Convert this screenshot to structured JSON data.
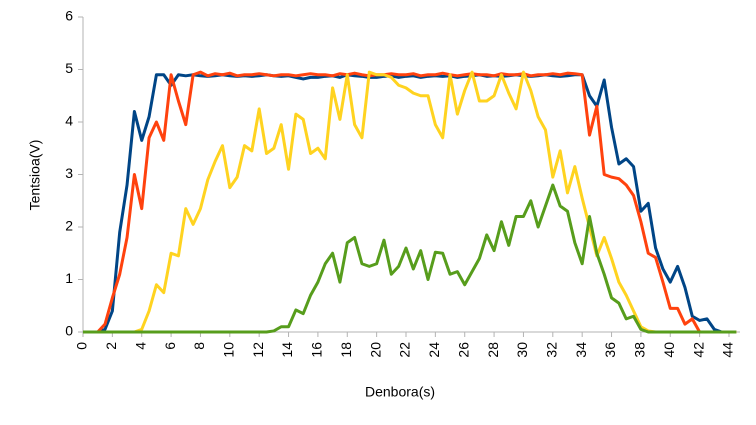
{
  "chart_data": {
    "type": "line",
    "x_label": "Denbora(s)",
    "y_label": "Tentsioa(V)",
    "x": [
      0,
      0.5,
      1,
      1.5,
      2,
      2.5,
      3,
      3.5,
      4,
      4.5,
      5,
      5.5,
      6,
      6.5,
      7,
      7.5,
      8,
      8.5,
      9,
      9.5,
      10,
      10.5,
      11,
      11.5,
      12,
      12.5,
      13,
      13.5,
      14,
      14.5,
      15,
      15.5,
      16,
      16.5,
      17,
      17.5,
      18,
      18.5,
      19,
      19.5,
      20,
      20.5,
      21,
      21.5,
      22,
      22.5,
      23,
      23.5,
      24,
      24.5,
      25,
      25.5,
      26,
      26.5,
      27,
      27.5,
      28,
      28.5,
      29,
      29.5,
      30,
      30.5,
      31,
      31.5,
      32,
      32.5,
      33,
      33.5,
      34,
      34.5,
      35,
      35.5,
      36,
      36.5,
      37,
      37.5,
      38,
      38.5,
      39,
      39.5,
      40,
      40.5,
      41,
      41.5,
      42,
      42.5,
      43,
      43.5,
      44,
      44.5
    ],
    "series": [
      {
        "color": "#004586",
        "values": [
          0,
          0,
          0,
          0.05,
          0.4,
          1.9,
          2.8,
          4.2,
          3.65,
          4.1,
          4.9,
          4.9,
          4.7,
          4.9,
          4.88,
          4.9,
          4.88,
          4.87,
          4.88,
          4.9,
          4.88,
          4.87,
          4.88,
          4.87,
          4.88,
          4.9,
          4.88,
          4.87,
          4.88,
          4.85,
          4.82,
          4.85,
          4.85,
          4.87,
          4.88,
          4.85,
          4.9,
          4.88,
          4.87,
          4.85,
          4.85,
          4.87,
          4.88,
          4.85,
          4.87,
          4.88,
          4.85,
          4.87,
          4.88,
          4.87,
          4.88,
          4.85,
          4.87,
          4.88,
          4.9,
          4.87,
          4.88,
          4.87,
          4.88,
          4.9,
          4.88,
          4.87,
          4.88,
          4.9,
          4.88,
          4.87,
          4.88,
          4.9,
          4.9,
          4.5,
          4.3,
          4.8,
          3.9,
          3.2,
          3.3,
          3.15,
          2.3,
          2.45,
          1.6,
          1.2,
          0.95,
          1.25,
          0.85,
          0.3,
          0.22,
          0.25,
          0.05,
          0,
          0,
          0
        ]
      },
      {
        "color": "#ff420e",
        "values": [
          0,
          0,
          0,
          0.15,
          0.65,
          1.1,
          1.8,
          3.0,
          2.35,
          3.7,
          4.0,
          3.65,
          4.9,
          4.4,
          3.95,
          4.9,
          4.95,
          4.88,
          4.92,
          4.9,
          4.93,
          4.88,
          4.9,
          4.9,
          4.92,
          4.9,
          4.88,
          4.9,
          4.9,
          4.88,
          4.9,
          4.92,
          4.9,
          4.9,
          4.88,
          4.92,
          4.9,
          4.93,
          4.9,
          4.88,
          4.9,
          4.9,
          4.92,
          4.9,
          4.9,
          4.92,
          4.88,
          4.9,
          4.9,
          4.93,
          4.9,
          4.88,
          4.9,
          4.92,
          4.9,
          4.9,
          4.88,
          4.92,
          4.9,
          4.9,
          4.92,
          4.88,
          4.9,
          4.9,
          4.92,
          4.9,
          4.93,
          4.92,
          4.9,
          3.75,
          4.3,
          3.0,
          2.95,
          2.92,
          2.8,
          2.6,
          2.1,
          1.5,
          1.42,
          0.95,
          0.45,
          0.45,
          0.15,
          0.25,
          0,
          0,
          0,
          0,
          0,
          0
        ]
      },
      {
        "color": "#ffd320",
        "values": [
          0,
          0,
          0,
          0,
          0,
          0,
          0,
          0,
          0.05,
          0.4,
          0.9,
          0.75,
          1.5,
          1.45,
          2.35,
          2.05,
          2.35,
          2.9,
          3.25,
          3.55,
          2.75,
          2.95,
          3.55,
          3.45,
          4.25,
          3.4,
          3.5,
          3.95,
          3.1,
          4.15,
          4.05,
          3.4,
          3.5,
          3.3,
          4.65,
          4.05,
          4.9,
          3.95,
          3.7,
          4.95,
          4.9,
          4.9,
          4.85,
          4.7,
          4.65,
          4.55,
          4.5,
          4.5,
          3.95,
          3.7,
          4.9,
          4.15,
          4.6,
          4.95,
          4.4,
          4.4,
          4.5,
          4.9,
          4.55,
          4.25,
          4.95,
          4.6,
          4.1,
          3.85,
          2.95,
          3.45,
          2.65,
          3.15,
          2.55,
          2.0,
          1.45,
          1.8,
          1.4,
          0.95,
          0.7,
          0.4,
          0.1,
          0.02,
          0,
          0,
          0,
          0,
          0,
          0,
          0,
          0,
          0,
          0,
          0,
          0
        ]
      },
      {
        "color": "#579d1c",
        "values": [
          0,
          0,
          0,
          0,
          0,
          0,
          0,
          0,
          0,
          0,
          0,
          0,
          0,
          0,
          0,
          0,
          0,
          0,
          0,
          0,
          0,
          0,
          0,
          0,
          0,
          0,
          0.02,
          0.1,
          0.1,
          0.42,
          0.35,
          0.7,
          0.95,
          1.3,
          1.5,
          0.95,
          1.7,
          1.8,
          1.3,
          1.25,
          1.3,
          1.75,
          1.1,
          1.25,
          1.6,
          1.2,
          1.55,
          1.0,
          1.52,
          1.5,
          1.1,
          1.15,
          0.9,
          1.15,
          1.4,
          1.85,
          1.55,
          2.1,
          1.65,
          2.2,
          2.2,
          2.5,
          2.0,
          2.4,
          2.8,
          2.4,
          2.3,
          1.7,
          1.3,
          2.2,
          1.5,
          1.1,
          0.65,
          0.55,
          0.25,
          0.3,
          0.05,
          0,
          0,
          0,
          0,
          0,
          0,
          0,
          0,
          0,
          0,
          0,
          0,
          0
        ]
      }
    ],
    "xlim": [
      0,
      44.75
    ],
    "xticks": [
      0,
      2,
      4,
      6,
      8,
      10,
      12,
      14,
      16,
      18,
      20,
      22,
      24,
      26,
      28,
      30,
      32,
      34,
      36,
      38,
      40,
      42,
      44
    ],
    "ylim": [
      0,
      6
    ],
    "yticks": [
      0,
      1,
      2,
      3,
      4,
      5,
      6
    ],
    "grid": false
  }
}
